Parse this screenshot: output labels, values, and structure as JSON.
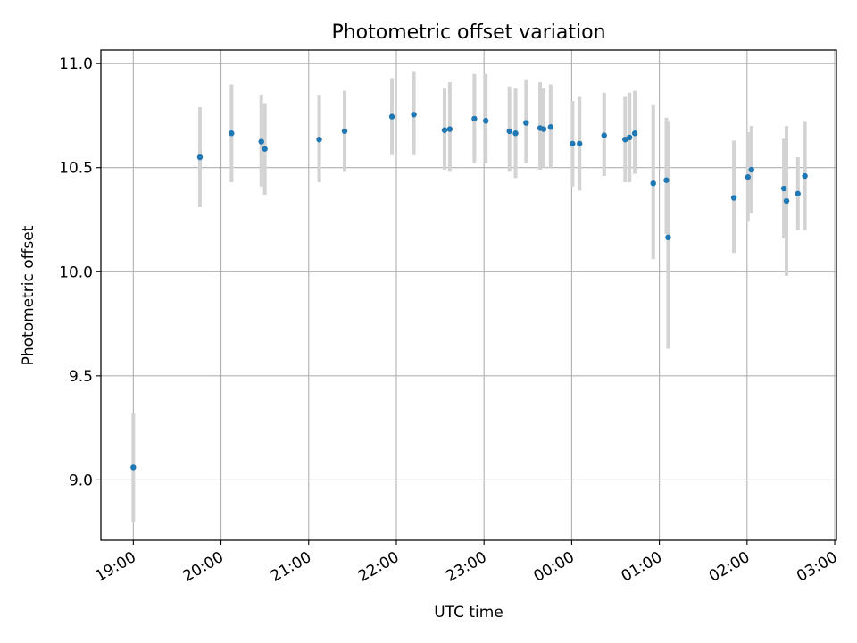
{
  "chart_data": {
    "type": "scatter",
    "title": "Photometric offset variation",
    "xlabel": "UTC time",
    "ylabel": "Photometric offset",
    "x_unit": "hours",
    "xlim": [
      18.63,
      27.02
    ],
    "ylim": [
      8.71,
      11.065
    ],
    "x_ticks": [
      19,
      20,
      21,
      22,
      23,
      24,
      25,
      26,
      27
    ],
    "x_tick_labels": [
      "19:00",
      "20:00",
      "21:00",
      "22:00",
      "23:00",
      "00:00",
      "01:00",
      "02:00",
      "03:00"
    ],
    "y_ticks": [
      9.0,
      9.5,
      10.0,
      10.5,
      11.0
    ],
    "y_tick_labels": [
      "9.0",
      "9.5",
      "10.0",
      "10.5",
      "11.0"
    ],
    "grid": true,
    "point_color": "#1f77b4",
    "errorbar_color": "#d3d3d3",
    "series": [
      {
        "points": [
          {
            "x": 19.0,
            "y": 9.06,
            "lo": 8.8,
            "hi": 9.32
          },
          {
            "x": 19.76,
            "y": 10.55,
            "lo": 10.31,
            "hi": 10.79
          },
          {
            "x": 20.12,
            "y": 10.665,
            "lo": 10.43,
            "hi": 10.9
          },
          {
            "x": 20.46,
            "y": 10.625,
            "lo": 10.41,
            "hi": 10.85
          },
          {
            "x": 20.5,
            "y": 10.59,
            "lo": 10.37,
            "hi": 10.81
          },
          {
            "x": 21.12,
            "y": 10.635,
            "lo": 10.43,
            "hi": 10.85
          },
          {
            "x": 21.41,
            "y": 10.675,
            "lo": 10.48,
            "hi": 10.87
          },
          {
            "x": 21.95,
            "y": 10.745,
            "lo": 10.56,
            "hi": 10.93
          },
          {
            "x": 22.2,
            "y": 10.755,
            "lo": 10.56,
            "hi": 10.96
          },
          {
            "x": 22.55,
            "y": 10.68,
            "lo": 10.49,
            "hi": 10.88
          },
          {
            "x": 22.61,
            "y": 10.685,
            "lo": 10.48,
            "hi": 10.91
          },
          {
            "x": 22.89,
            "y": 10.735,
            "lo": 10.52,
            "hi": 10.95
          },
          {
            "x": 23.02,
            "y": 10.725,
            "lo": 10.52,
            "hi": 10.95
          },
          {
            "x": 23.29,
            "y": 10.675,
            "lo": 10.48,
            "hi": 10.89
          },
          {
            "x": 23.36,
            "y": 10.665,
            "lo": 10.45,
            "hi": 10.88
          },
          {
            "x": 23.48,
            "y": 10.715,
            "lo": 10.52,
            "hi": 10.92
          },
          {
            "x": 23.64,
            "y": 10.69,
            "lo": 10.49,
            "hi": 10.91
          },
          {
            "x": 23.68,
            "y": 10.685,
            "lo": 10.5,
            "hi": 10.88
          },
          {
            "x": 23.76,
            "y": 10.695,
            "lo": 10.5,
            "hi": 10.9
          },
          {
            "x": 24.01,
            "y": 10.615,
            "lo": 10.41,
            "hi": 10.82
          },
          {
            "x": 24.09,
            "y": 10.615,
            "lo": 10.39,
            "hi": 10.84
          },
          {
            "x": 24.37,
            "y": 10.655,
            "lo": 10.46,
            "hi": 10.86
          },
          {
            "x": 24.61,
            "y": 10.635,
            "lo": 10.43,
            "hi": 10.84
          },
          {
            "x": 24.66,
            "y": 10.645,
            "lo": 10.43,
            "hi": 10.86
          },
          {
            "x": 24.72,
            "y": 10.665,
            "lo": 10.47,
            "hi": 10.87
          },
          {
            "x": 24.93,
            "y": 10.425,
            "lo": 10.06,
            "hi": 10.8
          },
          {
            "x": 25.08,
            "y": 10.44,
            "lo": 10.18,
            "hi": 10.74
          },
          {
            "x": 25.1,
            "y": 10.165,
            "lo": 9.63,
            "hi": 10.72
          },
          {
            "x": 25.85,
            "y": 10.355,
            "lo": 10.09,
            "hi": 10.63
          },
          {
            "x": 26.01,
            "y": 10.455,
            "lo": 10.24,
            "hi": 10.67
          },
          {
            "x": 26.05,
            "y": 10.49,
            "lo": 10.28,
            "hi": 10.7
          },
          {
            "x": 26.42,
            "y": 10.4,
            "lo": 10.16,
            "hi": 10.64
          },
          {
            "x": 26.45,
            "y": 10.34,
            "lo": 9.98,
            "hi": 10.7
          },
          {
            "x": 26.58,
            "y": 10.375,
            "lo": 10.2,
            "hi": 10.55
          },
          {
            "x": 26.66,
            "y": 10.46,
            "lo": 10.2,
            "hi": 10.72
          }
        ]
      }
    ]
  }
}
